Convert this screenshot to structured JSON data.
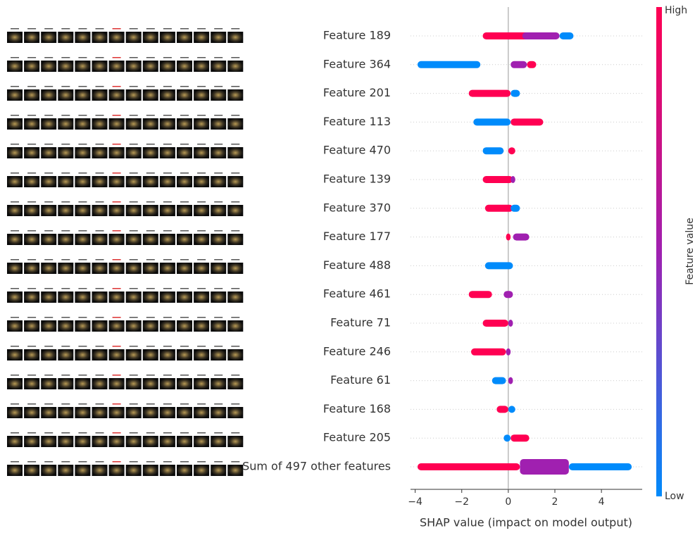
{
  "chart_data": {
    "type": "beeswarm",
    "xlabel": "SHAP value (impact on model output)",
    "xlim": [
      -4.2,
      5.75
    ],
    "xticks": [
      {
        "value": -4,
        "label": "−4"
      },
      {
        "value": -2,
        "label": "−2"
      },
      0,
      2,
      4
    ],
    "colorbar": {
      "label": "Feature value",
      "high": "High",
      "low": "Low",
      "high_color": "#ff0052",
      "low_color": "#008bfb"
    },
    "features": [
      {
        "name": "Feature 189",
        "segments": [
          {
            "lo": -1.1,
            "hi": 1.0,
            "color": "#ff0052"
          },
          {
            "lo": 0.6,
            "hi": 2.2,
            "color": "#a020b0"
          },
          {
            "lo": 2.2,
            "hi": 2.8,
            "color": "#008bfb"
          }
        ]
      },
      {
        "name": "Feature 364",
        "segments": [
          {
            "lo": -3.9,
            "hi": -1.2,
            "color": "#008bfb"
          },
          {
            "lo": 0.1,
            "hi": 0.8,
            "color": "#a020b0"
          },
          {
            "lo": 0.8,
            "hi": 1.2,
            "color": "#ff0052"
          }
        ]
      },
      {
        "name": "Feature 201",
        "segments": [
          {
            "lo": -1.7,
            "hi": 0.1,
            "color": "#ff0052"
          },
          {
            "lo": 0.1,
            "hi": 0.5,
            "color": "#008bfb"
          }
        ]
      },
      {
        "name": "Feature 113",
        "segments": [
          {
            "lo": -1.5,
            "hi": 0.1,
            "color": "#008bfb"
          },
          {
            "lo": 0.1,
            "hi": 1.5,
            "color": "#ff0052"
          }
        ]
      },
      {
        "name": "Feature 470",
        "segments": [
          {
            "lo": -1.1,
            "hi": -0.2,
            "color": "#008bfb"
          },
          {
            "lo": 0.0,
            "hi": 0.3,
            "color": "#ff0052"
          }
        ]
      },
      {
        "name": "Feature 139",
        "segments": [
          {
            "lo": -1.1,
            "hi": 0.2,
            "color": "#ff0052"
          },
          {
            "lo": 0.1,
            "hi": 0.3,
            "color": "#a020b0"
          }
        ]
      },
      {
        "name": "Feature 370",
        "segments": [
          {
            "lo": -1.0,
            "hi": 0.2,
            "color": "#ff0052"
          },
          {
            "lo": 0.1,
            "hi": 0.5,
            "color": "#008bfb"
          }
        ]
      },
      {
        "name": "Feature 177",
        "segments": [
          {
            "lo": -0.1,
            "hi": 0.1,
            "color": "#ff0052"
          },
          {
            "lo": 0.2,
            "hi": 0.9,
            "color": "#a020b0"
          }
        ]
      },
      {
        "name": "Feature 488",
        "segments": [
          {
            "lo": -1.0,
            "hi": 0.2,
            "color": "#008bfb"
          }
        ]
      },
      {
        "name": "Feature 461",
        "segments": [
          {
            "lo": -1.7,
            "hi": -0.7,
            "color": "#ff0052"
          },
          {
            "lo": -0.2,
            "hi": 0.2,
            "color": "#a020b0"
          }
        ]
      },
      {
        "name": "Feature 71",
        "segments": [
          {
            "lo": -1.1,
            "hi": 0.0,
            "color": "#ff0052"
          },
          {
            "lo": 0.0,
            "hi": 0.2,
            "color": "#a020b0"
          }
        ]
      },
      {
        "name": "Feature 246",
        "segments": [
          {
            "lo": -1.6,
            "hi": -0.1,
            "color": "#ff0052"
          },
          {
            "lo": -0.1,
            "hi": 0.1,
            "color": "#a020b0"
          }
        ]
      },
      {
        "name": "Feature 61",
        "segments": [
          {
            "lo": -0.7,
            "hi": -0.1,
            "color": "#008bfb"
          },
          {
            "lo": 0.0,
            "hi": 0.2,
            "color": "#a020b0"
          }
        ]
      },
      {
        "name": "Feature 168",
        "segments": [
          {
            "lo": -0.5,
            "hi": 0.0,
            "color": "#ff0052"
          },
          {
            "lo": 0.0,
            "hi": 0.3,
            "color": "#008bfb"
          }
        ]
      },
      {
        "name": "Feature 205",
        "segments": [
          {
            "lo": -0.2,
            "hi": 0.1,
            "color": "#008bfb"
          },
          {
            "lo": 0.1,
            "hi": 0.9,
            "color": "#ff0052"
          }
        ]
      },
      {
        "name": "Sum of 497 other features",
        "segments": [
          {
            "lo": -3.9,
            "hi": 0.5,
            "color": "#ff0052"
          },
          {
            "lo": 0.5,
            "hi": 2.6,
            "color": "#a020b0"
          },
          {
            "lo": 2.6,
            "hi": 5.3,
            "color": "#008bfb"
          }
        ]
      }
    ]
  }
}
